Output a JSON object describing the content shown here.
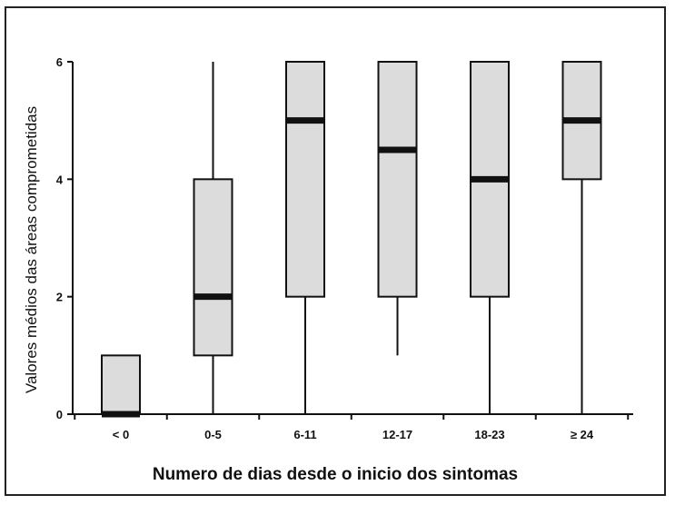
{
  "chart_data": {
    "type": "boxplot",
    "title": "",
    "xlabel": "Numero de dias desde o inicio dos sintomas",
    "ylabel": "Valores médios das áreas comprometidas",
    "ylim": [
      0,
      6
    ],
    "yticks": [
      0,
      2,
      4,
      6
    ],
    "grid": false,
    "categories": [
      "< 0",
      "0-5",
      "6-11",
      "12-17",
      "18-23",
      "≥ 24"
    ],
    "boxes": [
      {
        "category": "< 0",
        "min": 0,
        "q1": 0,
        "median": 0,
        "q3": 1,
        "max": 1
      },
      {
        "category": "0-5",
        "min": 0,
        "q1": 1,
        "median": 2,
        "q3": 4,
        "max": 6
      },
      {
        "category": "6-11",
        "min": 0,
        "q1": 2,
        "median": 5,
        "q3": 6,
        "max": 6
      },
      {
        "category": "12-17",
        "min": 1,
        "q1": 2,
        "median": 4.5,
        "q3": 6,
        "max": 6
      },
      {
        "category": "18-23",
        "min": 0,
        "q1": 2,
        "median": 4,
        "q3": 6,
        "max": 6
      },
      {
        "category": "≥ 24",
        "min": 0,
        "q1": 4,
        "median": 5,
        "q3": 6,
        "max": 6
      }
    ],
    "colors": {
      "box_fill": "#dcdcdc",
      "line": "#111111"
    }
  }
}
